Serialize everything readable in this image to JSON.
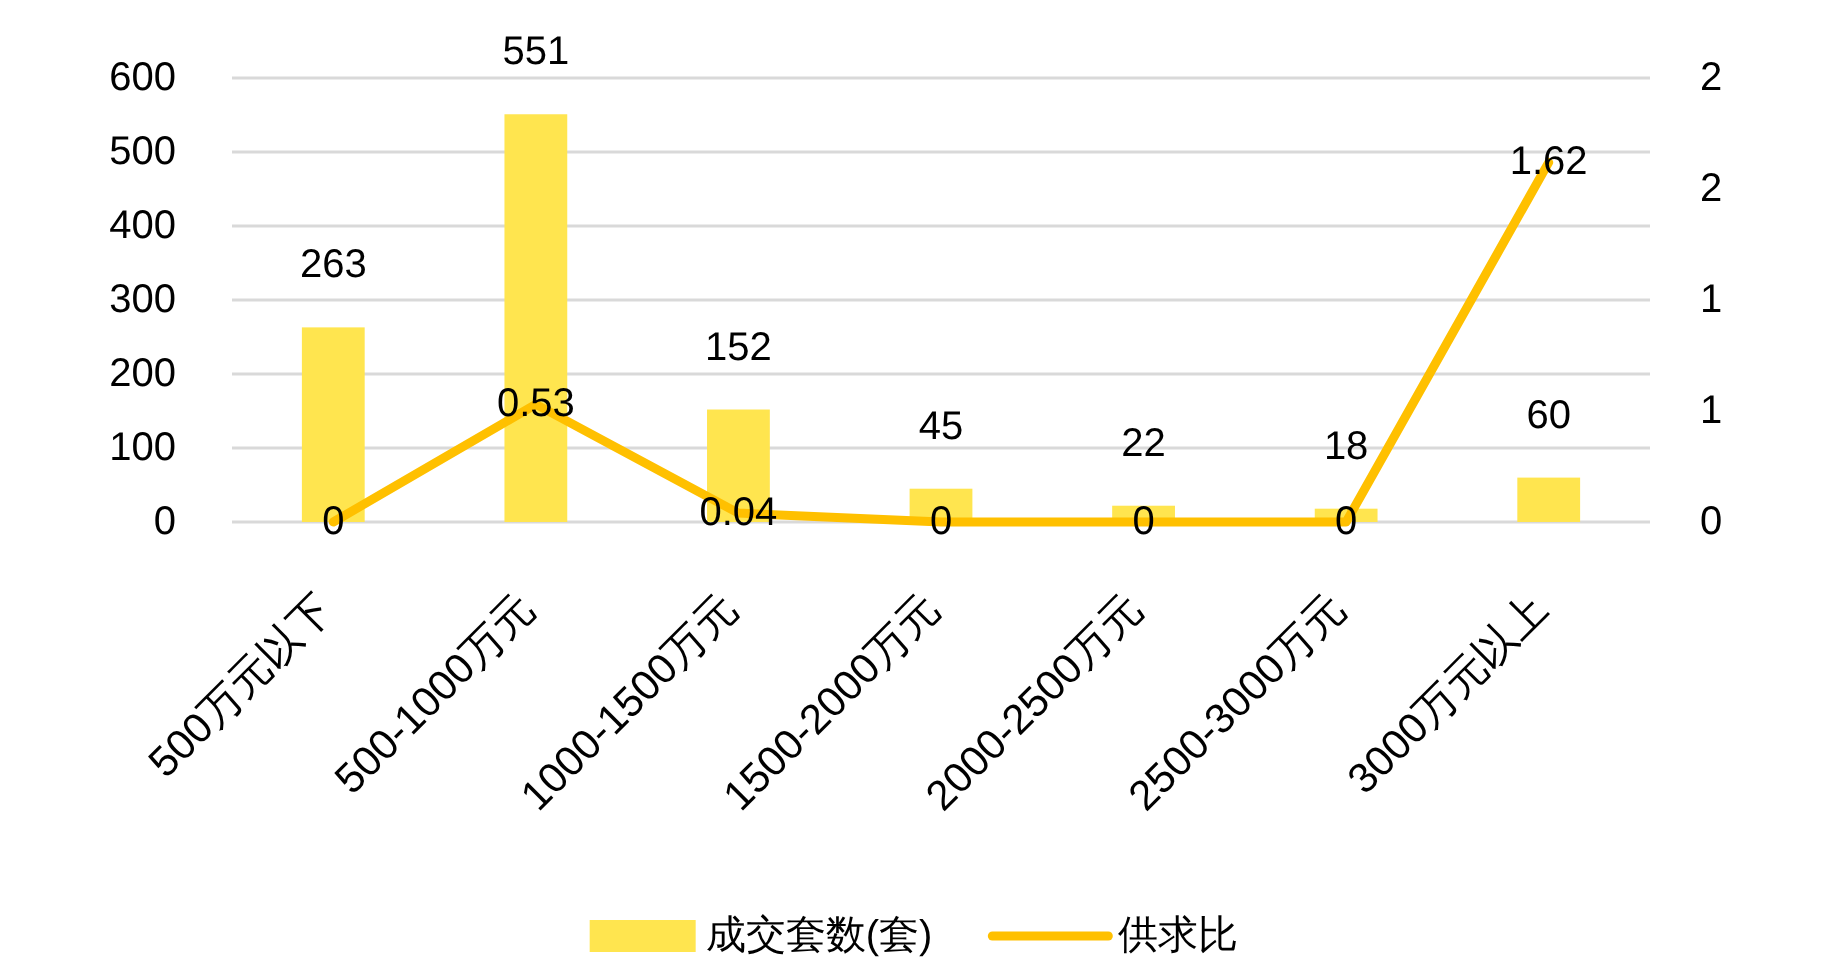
{
  "chart_data": {
    "type": "bar",
    "categories": [
      "500万元以下",
      "500-1000万元",
      "1000-1500万元",
      "1500-2000万元",
      "2000-2500万元",
      "2500-3000万元",
      "3000万元以上"
    ],
    "series": [
      {
        "name": "成交套数(套)",
        "color": "#ffe54f",
        "values": [
          263,
          551,
          152,
          45,
          22,
          18,
          60
        ]
      },
      {
        "name": "供求比",
        "type": "line",
        "axis": "y2",
        "color": "#ffc000",
        "values": [
          0,
          0.53,
          0.04,
          0,
          0,
          0,
          1.62
        ]
      }
    ],
    "ylim": [
      0,
      600
    ],
    "yticks": [
      0,
      100,
      200,
      300,
      400,
      500,
      600
    ],
    "y2lim": [
      0,
      2
    ],
    "y2ticks": [
      {
        "value": 0,
        "label": "0"
      },
      {
        "value": 0.5,
        "label": "1"
      },
      {
        "value": 1,
        "label": "1"
      },
      {
        "value": 1.5,
        "label": "2"
      },
      {
        "value": 2,
        "label": "2"
      }
    ],
    "grid": "y",
    "legend": "bottom",
    "data_labels": true
  }
}
